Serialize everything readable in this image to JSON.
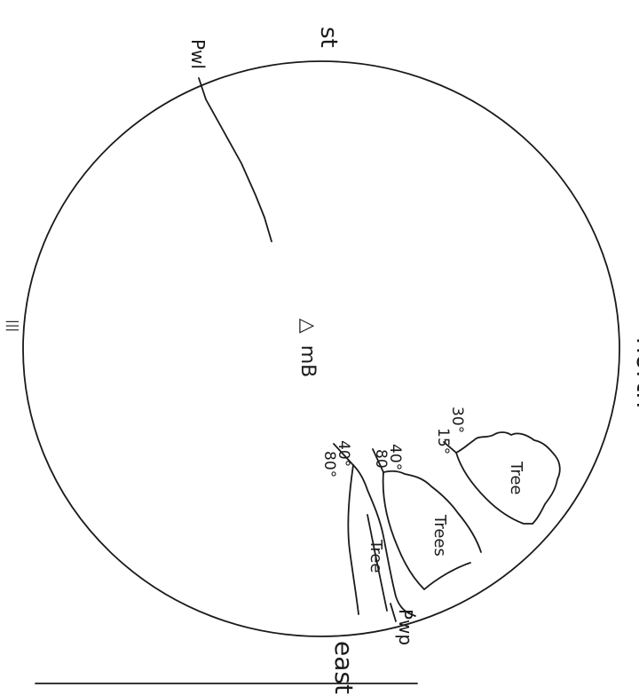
{
  "diagram": {
    "directions": {
      "west_partial": "st",
      "north": "north",
      "east": "east",
      "faint_left": "|||"
    },
    "station": {
      "symbol": "△",
      "label": "mB"
    },
    "pole_label": "Pwl",
    "features": [
      {
        "name_label": "Tree",
        "angles": [
          "30°",
          "15°"
        ]
      },
      {
        "name_label": "Trees",
        "angles": [
          "40°",
          "80"
        ]
      },
      {
        "name_label": "Tree",
        "angles": [
          "40°",
          "80°"
        ]
      }
    ],
    "pole_label_bottom": "Pwp"
  }
}
